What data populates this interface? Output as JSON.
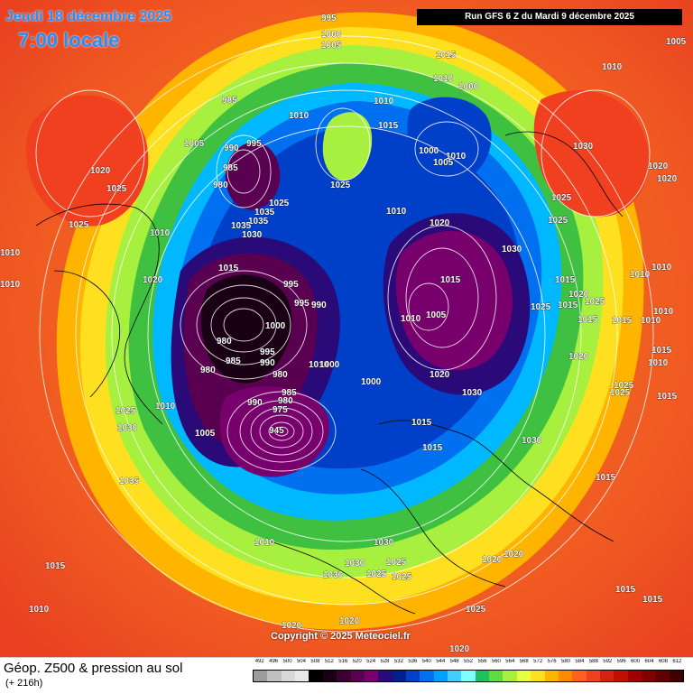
{
  "header": {
    "date": "Jeudi 18 décembre 2025",
    "time": "7:00 locale",
    "run": "Run GFS 6 Z du Mardi 9 décembre 2025"
  },
  "footer": {
    "field": "Géop. Z500 & pression au sol",
    "forecast_hour": "(+ 216h)",
    "copyright": "Copyright © 2025 Meteociel.fr"
  },
  "legend": {
    "labels": [
      "492",
      "496",
      "500",
      "504",
      "508",
      "512",
      "516",
      "520",
      "524",
      "528",
      "532",
      "536",
      "540",
      "544",
      "548",
      "552",
      "556",
      "560",
      "564",
      "568",
      "572",
      "576",
      "580",
      "584",
      "588",
      "592",
      "596",
      "600",
      "604",
      "608",
      "612"
    ],
    "colors": [
      "#9b9b9b",
      "#c0c0c0",
      "#d8d8d8",
      "#e8e8e8",
      "#000000",
      "#1a0014",
      "#3a0032",
      "#5a0050",
      "#78006c",
      "#2a0a78",
      "#002090",
      "#0040c8",
      "#0070f0",
      "#00a0ff",
      "#40d0ff",
      "#80ffff",
      "#20c060",
      "#60dc40",
      "#a8f040",
      "#e8ff40",
      "#ffe020",
      "#ffb400",
      "#ff8a00",
      "#ff6020",
      "#f04020",
      "#d82010",
      "#c01000",
      "#a00000",
      "#800000",
      "#600000",
      "#400000"
    ]
  },
  "pressure_labels": [
    "995",
    "1000",
    "1005",
    "1010",
    "1015",
    "1020",
    "1025",
    "1030",
    "1035",
    "985",
    "990",
    "980",
    "975",
    "945"
  ]
}
